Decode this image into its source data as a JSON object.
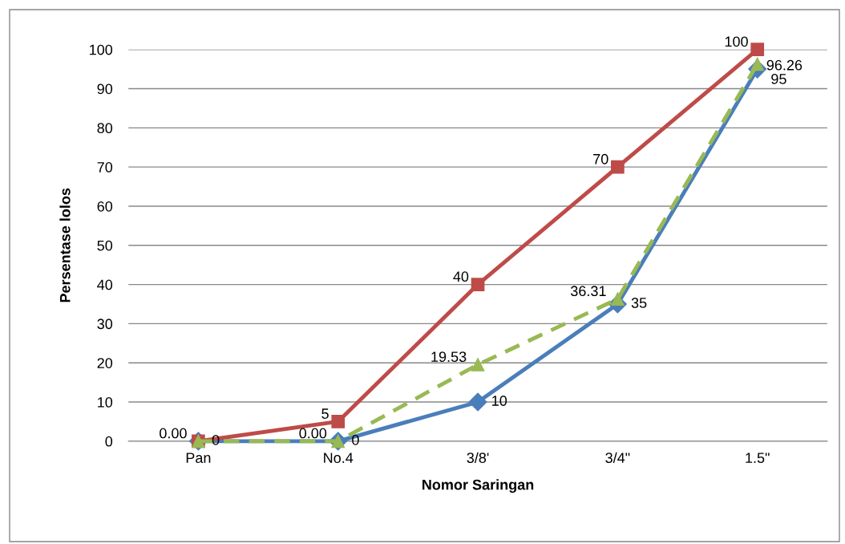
{
  "chart_data": {
    "type": "line",
    "xlabel": "Nomor Saringan",
    "ylabel": "Persentase lolos",
    "categories": [
      "Pan",
      "No.4",
      "3/8'",
      "3/4\"",
      "1.5\""
    ],
    "series": [
      {
        "color": "#4a7ebb",
        "marker": "diamond",
        "line_style": "solid",
        "values": [
          0,
          0,
          10,
          35,
          95
        ],
        "value_labels": [
          "0",
          "0",
          "10",
          "35",
          "95"
        ]
      },
      {
        "color": "#be4b48",
        "marker": "square",
        "line_style": "solid",
        "values": [
          0,
          5,
          40,
          70,
          100
        ],
        "value_labels": [
          null,
          "5",
          "40",
          "70",
          "100"
        ]
      },
      {
        "color": "#98b954",
        "marker": "triangle",
        "line_style": "dashed",
        "values": [
          0.0,
          0.0,
          19.53,
          36.31,
          96.26
        ],
        "value_labels": [
          "0.00",
          "0.00",
          "19.53",
          "36.31",
          "96.26"
        ]
      }
    ],
    "ylim": [
      0,
      100
    ],
    "yticks": [
      0,
      10,
      20,
      30,
      40,
      50,
      60,
      70,
      80,
      90,
      100
    ],
    "grid": "y",
    "legend": false
  }
}
